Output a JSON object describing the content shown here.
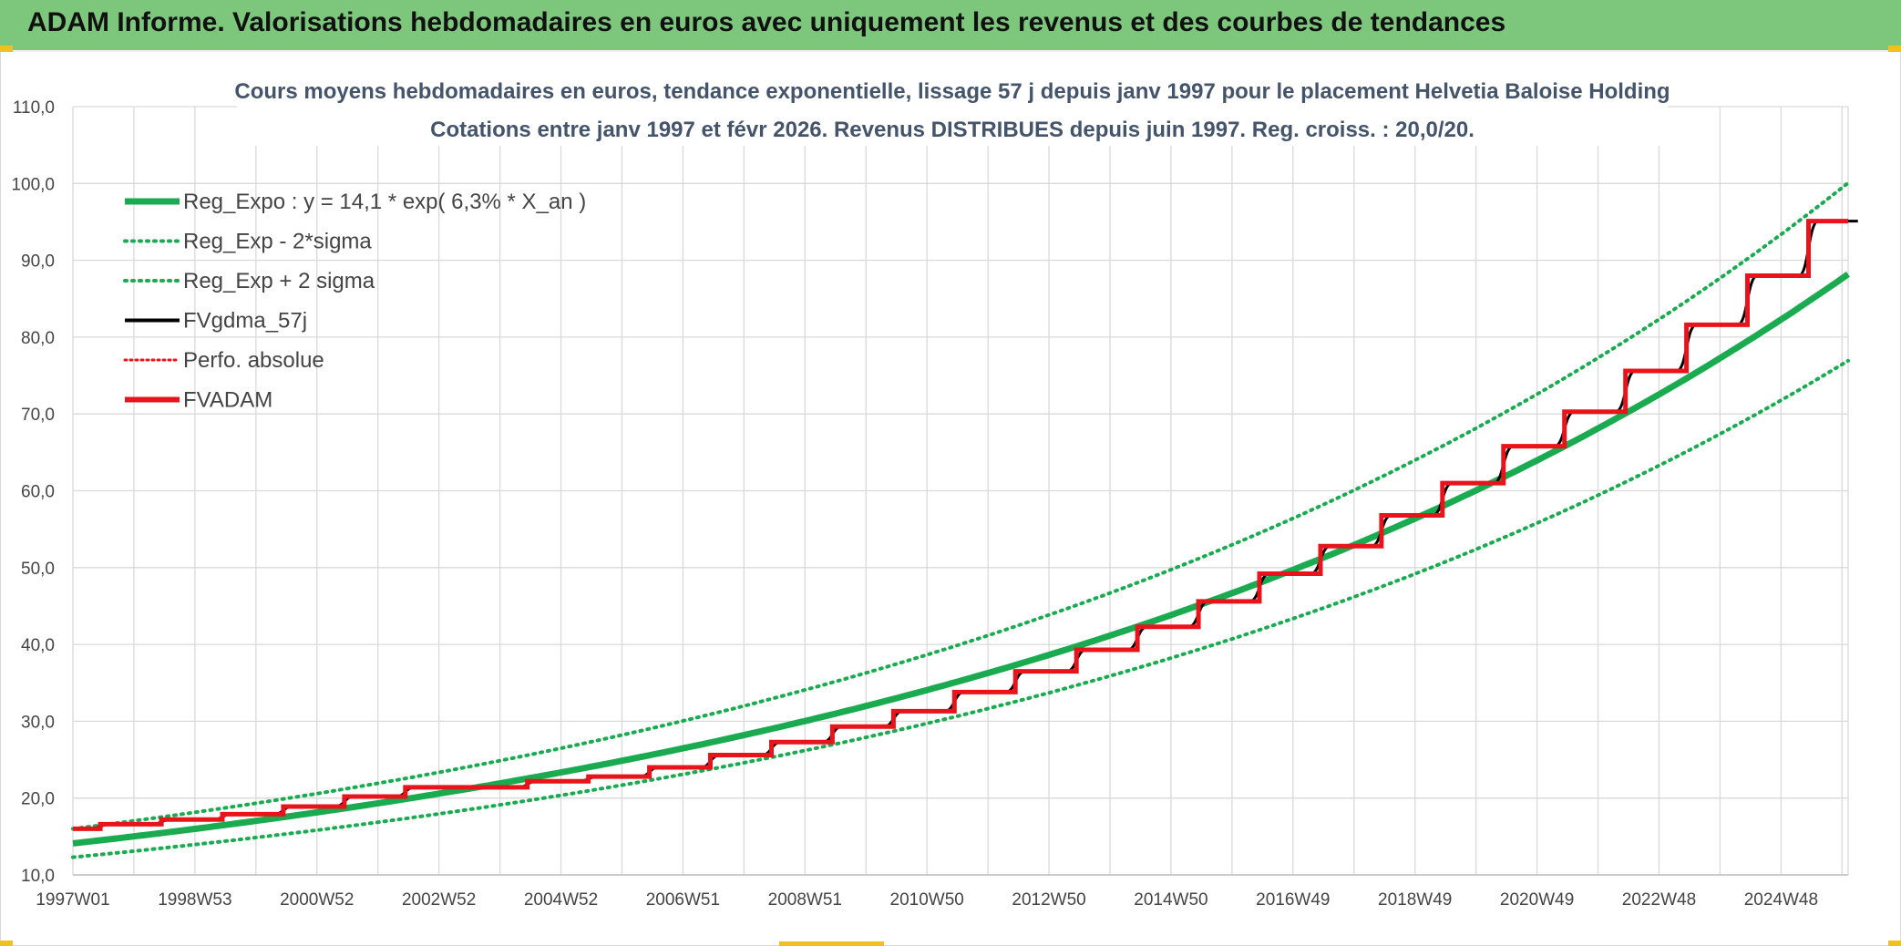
{
  "banner": {
    "title": "ADAM Informe. Valorisations hebdomadaires en euros avec uniquement les revenus et des courbes de tendances"
  },
  "colors": {
    "banner_bg": "#7dc77d",
    "reg_expo": "#1aaa50",
    "fv_gdma": "#000000",
    "fv_adam": "#e8141b",
    "perfo": "#e8141b",
    "grid": "#d9d9d9"
  },
  "chart_data": {
    "type": "line",
    "title": "Cours moyens hebdomadaires en euros, tendance exponentielle, lissage 57 j depuis janv 1997 pour le placement Helvetia Baloise Holding",
    "subtitle": "Cotations entre janv 1997 et févr 2026. Revenus DISTRIBUES depuis juin 1997. Reg. croiss. : 20,0/20.",
    "xlabel": "",
    "ylabel": "",
    "ylim": [
      10,
      110
    ],
    "y_ticks": [
      "10,0",
      "20,0",
      "30,0",
      "40,0",
      "50,0",
      "60,0",
      "70,0",
      "80,0",
      "90,0",
      "100,0",
      "110,0"
    ],
    "x_range": [
      1997.0,
      2026.1
    ],
    "x_ticks": [
      "1997W01",
      "1998W53",
      "2000W52",
      "2002W52",
      "2004W52",
      "2006W51",
      "2008W51",
      "2010W50",
      "2012W50",
      "2014W50",
      "2016W49",
      "2018W49",
      "2020W49",
      "2022W48",
      "2024W48"
    ],
    "grid": true,
    "legend_position": "top-left",
    "series": [
      {
        "name": "Reg_Expo : y = 14,1 * exp( 6,3% *  X_an )",
        "style": "solid-thick",
        "color": "#1aaa50",
        "model": {
          "a": 14.1,
          "rate": 0.063,
          "x0": 1997.0
        }
      },
      {
        "name": "Reg_Exp - 2*sigma",
        "style": "dotted",
        "color": "#1aaa50",
        "model": {
          "a": 12.3,
          "rate": 0.063,
          "x0": 1997.0
        }
      },
      {
        "name": "Reg_Exp + 2 sigma",
        "style": "dotted",
        "color": "#1aaa50",
        "model": {
          "a": 16.0,
          "rate": 0.063,
          "x0": 1997.0
        }
      },
      {
        "name": "FVgdma_57j",
        "style": "solid",
        "color": "#000000",
        "smoothed_steps": true
      },
      {
        "name": "Perfo. absolue",
        "style": "dotted",
        "color": "#e8141b"
      },
      {
        "name": "FVADAM",
        "style": "solid-thick",
        "color": "#e8141b",
        "steps": [
          [
            1997.0,
            16.0
          ],
          [
            1997.45,
            16.6
          ],
          [
            1998.45,
            17.2
          ],
          [
            1999.45,
            17.9
          ],
          [
            2000.45,
            18.9
          ],
          [
            2001.45,
            20.2
          ],
          [
            2002.45,
            21.4
          ],
          [
            2003.45,
            21.4
          ],
          [
            2004.45,
            22.2
          ],
          [
            2005.45,
            22.8
          ],
          [
            2006.45,
            24.0
          ],
          [
            2007.45,
            25.6
          ],
          [
            2008.45,
            27.3
          ],
          [
            2009.45,
            29.3
          ],
          [
            2010.45,
            31.3
          ],
          [
            2011.45,
            33.8
          ],
          [
            2012.45,
            36.5
          ],
          [
            2013.45,
            39.3
          ],
          [
            2014.45,
            42.3
          ],
          [
            2015.45,
            45.6
          ],
          [
            2016.45,
            49.2
          ],
          [
            2017.45,
            52.8
          ],
          [
            2018.45,
            56.8
          ],
          [
            2019.45,
            61.0
          ],
          [
            2020.45,
            65.8
          ],
          [
            2021.45,
            70.3
          ],
          [
            2022.45,
            75.6
          ],
          [
            2023.45,
            81.6
          ],
          [
            2024.45,
            88.0
          ],
          [
            2025.45,
            95.1
          ],
          [
            2026.1,
            95.1
          ]
        ]
      }
    ]
  }
}
